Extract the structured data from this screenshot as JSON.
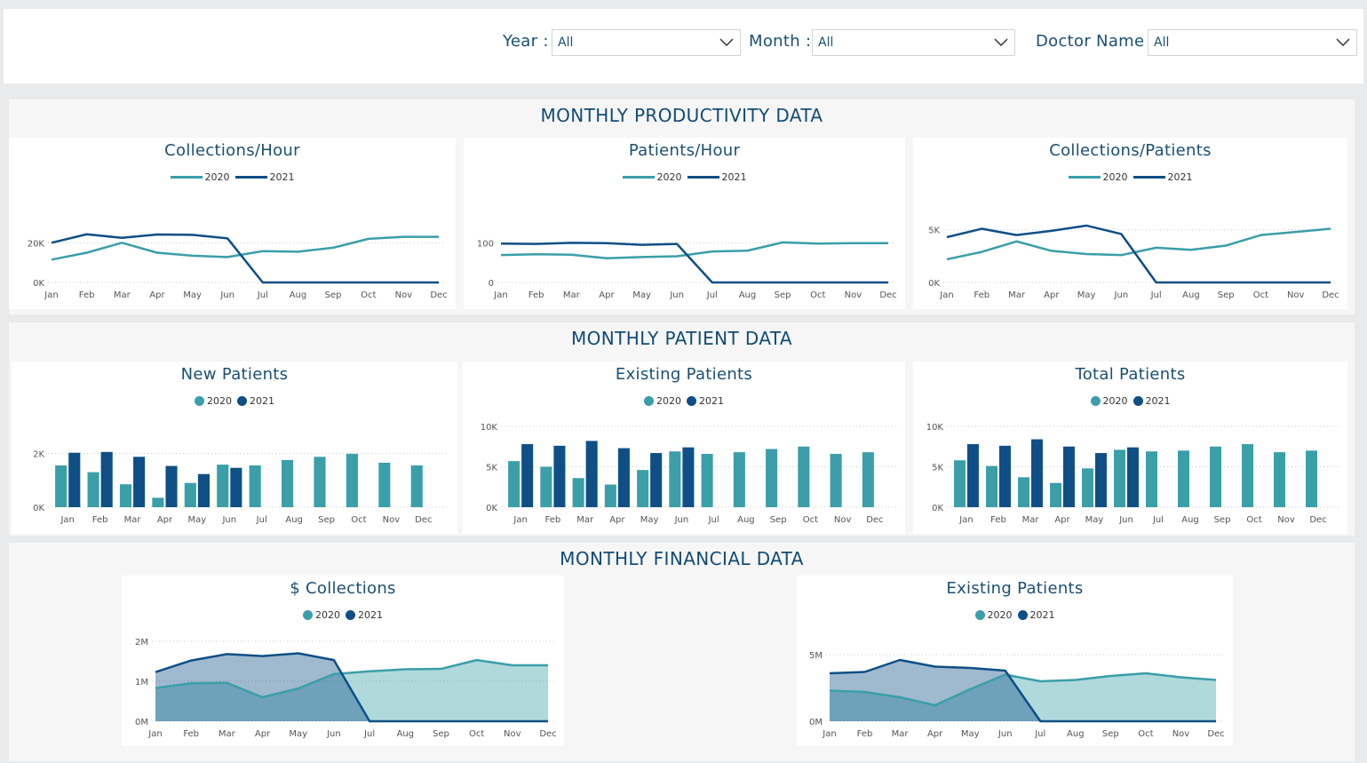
{
  "filters": {
    "year": {
      "label": "Year :",
      "value": "All"
    },
    "month": {
      "label": "Month :",
      "value": "All"
    },
    "doctor": {
      "label": "Doctor Name :",
      "value": "All"
    }
  },
  "sections": {
    "productivity": "MONTHLY PRODUCTIVITY DATA",
    "patient": "MONTHLY PATIENT DATA",
    "financial": "MONTHLY FINANCIAL DATA"
  },
  "colors": {
    "y2020": "#3a9fa8",
    "y2021": "#0f4f86",
    "grid": "#c8c8c8"
  },
  "chart_data": [
    {
      "id": "collections_hour",
      "type": "line",
      "title": "Collections/Hour",
      "categories": [
        "Jan",
        "Feb",
        "Mar",
        "Apr",
        "May",
        "Jun",
        "Jul",
        "Aug",
        "Sep",
        "Oct",
        "Nov",
        "Dec"
      ],
      "series": [
        {
          "name": "2020",
          "values": [
            11500,
            15000,
            20000,
            15000,
            13500,
            12800,
            15800,
            15500,
            17500,
            22000,
            23000,
            23000
          ]
        },
        {
          "name": "2021",
          "values": [
            20000,
            24300,
            22500,
            24200,
            24000,
            22200,
            0,
            0,
            0,
            0,
            0,
            0
          ]
        }
      ],
      "ylim": [
        0,
        30000
      ],
      "ticks": [
        0,
        20000
      ],
      "tick_labels": [
        "0K",
        "20K"
      ]
    },
    {
      "id": "patients_hour",
      "type": "line",
      "title": "Patients/Hour",
      "categories": [
        "Jan",
        "Feb",
        "Mar",
        "Apr",
        "May",
        "Jun",
        "Jul",
        "Aug",
        "Sep",
        "Oct",
        "Nov",
        "Dec"
      ],
      "series": [
        {
          "name": "2020",
          "values": [
            69,
            71,
            70,
            61,
            64,
            66,
            78,
            80,
            101,
            98,
            99,
            99
          ]
        },
        {
          "name": "2021",
          "values": [
            98,
            97,
            100,
            99,
            95,
            97,
            0,
            0,
            0,
            0,
            0,
            0
          ]
        }
      ],
      "ylim": [
        0,
        150
      ],
      "ticks": [
        0,
        100
      ],
      "tick_labels": [
        "0",
        "100"
      ]
    },
    {
      "id": "collections_patients",
      "type": "line",
      "title": "Collections/Patients",
      "categories": [
        "Jan",
        "Feb",
        "Mar",
        "Apr",
        "May",
        "Jun",
        "Jul",
        "Aug",
        "Sep",
        "Oct",
        "Nov",
        "Dec"
      ],
      "series": [
        {
          "name": "2020",
          "values": [
            2200,
            2900,
            3900,
            3000,
            2700,
            2600,
            3300,
            3100,
            3500,
            4500,
            4800,
            5100
          ]
        },
        {
          "name": "2021",
          "values": [
            4300,
            5100,
            4500,
            4900,
            5400,
            4600,
            0,
            0,
            0,
            0,
            0,
            0
          ]
        }
      ],
      "ylim": [
        0,
        7000
      ],
      "ticks": [
        0,
        5000
      ],
      "tick_labels": [
        "0K",
        "5K"
      ]
    },
    {
      "id": "new_patients",
      "type": "bar",
      "title": "New Patients",
      "categories": [
        "Jan",
        "Feb",
        "Mar",
        "Apr",
        "May",
        "Jun",
        "Jul",
        "Aug",
        "Sep",
        "Oct",
        "Nov",
        "Dec"
      ],
      "series": [
        {
          "name": "2020",
          "values": [
            1550,
            1300,
            850,
            350,
            900,
            1580,
            1550,
            1750,
            1870,
            1980,
            1650,
            1550
          ]
        },
        {
          "name": "2021",
          "values": [
            2020,
            2050,
            1870,
            1530,
            1230,
            1460,
            null,
            null,
            null,
            null,
            null,
            null
          ]
        }
      ],
      "ylim": [
        0,
        3000
      ],
      "ticks": [
        0,
        2000
      ],
      "tick_labels": [
        "0K",
        "2K"
      ]
    },
    {
      "id": "existing_patients",
      "type": "bar",
      "title": "Existing Patients",
      "categories": [
        "Jan",
        "Feb",
        "Mar",
        "Apr",
        "May",
        "Jun",
        "Jul",
        "Aug",
        "Sep",
        "Oct",
        "Nov",
        "Dec"
      ],
      "series": [
        {
          "name": "2020",
          "values": [
            5700,
            5000,
            3600,
            2800,
            4600,
            6900,
            6600,
            6800,
            7200,
            7500,
            6600,
            6800
          ]
        },
        {
          "name": "2021",
          "values": [
            7800,
            7600,
            8200,
            7300,
            6700,
            7400,
            null,
            null,
            null,
            null,
            null,
            null
          ]
        }
      ],
      "ylim": [
        0,
        10000
      ],
      "ticks": [
        0,
        5000,
        10000
      ],
      "tick_labels": [
        "0K",
        "5K",
        "10K"
      ]
    },
    {
      "id": "total_patients",
      "type": "bar",
      "title": "Total Patients",
      "categories": [
        "Jan",
        "Feb",
        "Mar",
        "Apr",
        "May",
        "Jun",
        "Jul",
        "Aug",
        "Sep",
        "Oct",
        "Nov",
        "Dec"
      ],
      "series": [
        {
          "name": "2020",
          "values": [
            5800,
            5100,
            3700,
            3000,
            4800,
            7100,
            6900,
            7000,
            7500,
            7800,
            6800,
            7000
          ]
        },
        {
          "name": "2021",
          "values": [
            7800,
            7600,
            8400,
            7500,
            6700,
            7400,
            null,
            null,
            null,
            null,
            null,
            null
          ]
        }
      ],
      "ylim": [
        0,
        10000
      ],
      "ticks": [
        0,
        5000,
        10000
      ],
      "tick_labels": [
        "0K",
        "5K",
        "10K"
      ]
    },
    {
      "id": "collections",
      "type": "area",
      "title": "$ Collections",
      "categories": [
        "Jan",
        "Feb",
        "Mar",
        "Apr",
        "May",
        "Jun",
        "Jul",
        "Aug",
        "Sep",
        "Oct",
        "Nov",
        "Dec"
      ],
      "series": [
        {
          "name": "2020",
          "values": [
            830000,
            950000,
            960000,
            600000,
            820000,
            1180000,
            1250000,
            1300000,
            1310000,
            1530000,
            1400000,
            1400000
          ]
        },
        {
          "name": "2021",
          "values": [
            1230000,
            1520000,
            1680000,
            1630000,
            1700000,
            1530000,
            0,
            0,
            0,
            0,
            0,
            0
          ]
        }
      ],
      "ylim": [
        0,
        2000000
      ],
      "ticks": [
        0,
        1000000,
        2000000
      ],
      "tick_labels": [
        "0M",
        "1M",
        "2M"
      ]
    },
    {
      "id": "existing_patients_fin",
      "type": "area",
      "title": "Existing Patients",
      "categories": [
        "Jan",
        "Feb",
        "Mar",
        "Apr",
        "May",
        "Jun",
        "Jul",
        "Aug",
        "Sep",
        "Oct",
        "Nov",
        "Dec"
      ],
      "series": [
        {
          "name": "2020",
          "values": [
            2300000,
            2200000,
            1800000,
            1200000,
            2400000,
            3500000,
            3000000,
            3100000,
            3400000,
            3600000,
            3300000,
            3100000
          ]
        },
        {
          "name": "2021",
          "values": [
            3600000,
            3700000,
            4600000,
            4100000,
            4000000,
            3800000,
            0,
            0,
            0,
            0,
            0,
            0
          ]
        }
      ],
      "ylim": [
        0,
        5000000
      ],
      "ticks": [
        0,
        5000000
      ],
      "tick_labels": [
        "0M",
        "5M"
      ]
    }
  ]
}
